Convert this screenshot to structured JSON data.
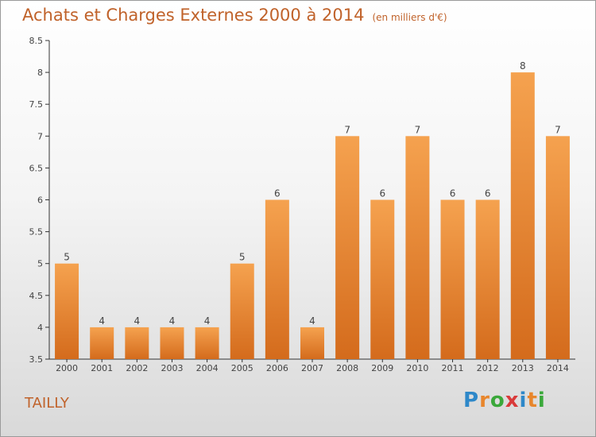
{
  "header": {
    "title": "Achats et Charges Externes 2000 à 2014",
    "unit": "(en milliers d'€)"
  },
  "footer": {
    "city": "TAILLY",
    "brand_letters": [
      "P",
      "r",
      "o",
      "x",
      "i",
      "t",
      "i"
    ],
    "brand_colors": [
      "#2e88c9",
      "#e8862c",
      "#3aa83a",
      "#d93a3a",
      "#2e88c9",
      "#e8862c",
      "#3aa83a"
    ]
  },
  "chart_data": {
    "type": "bar",
    "title": "Achats et Charges Externes 2000 à 2014",
    "subtitle": "(en milliers d'€)",
    "categories": [
      "2000",
      "2001",
      "2002",
      "2003",
      "2004",
      "2005",
      "2006",
      "2007",
      "2008",
      "2009",
      "2010",
      "2011",
      "2012",
      "2013",
      "2014"
    ],
    "values": [
      5,
      4,
      4,
      4,
      4,
      5,
      6,
      4,
      7,
      6,
      7,
      6,
      6,
      8,
      7
    ],
    "data_labels": [
      "5",
      "4",
      "4",
      "4",
      "4",
      "5",
      "6",
      "4",
      "7",
      "6",
      "7",
      "6",
      "6",
      "8",
      "7"
    ],
    "xlabel": "",
    "ylabel": "",
    "ylim": [
      3.5,
      8.5
    ],
    "yticks": [
      "3.5",
      "4",
      "4.5",
      "5",
      "5.5",
      "6",
      "6.5",
      "7",
      "7.5",
      "8",
      "8.5"
    ],
    "grid": false,
    "legend": "none",
    "bar_color_top": "#f5a24f",
    "bar_color_bottom": "#d46b1c"
  }
}
